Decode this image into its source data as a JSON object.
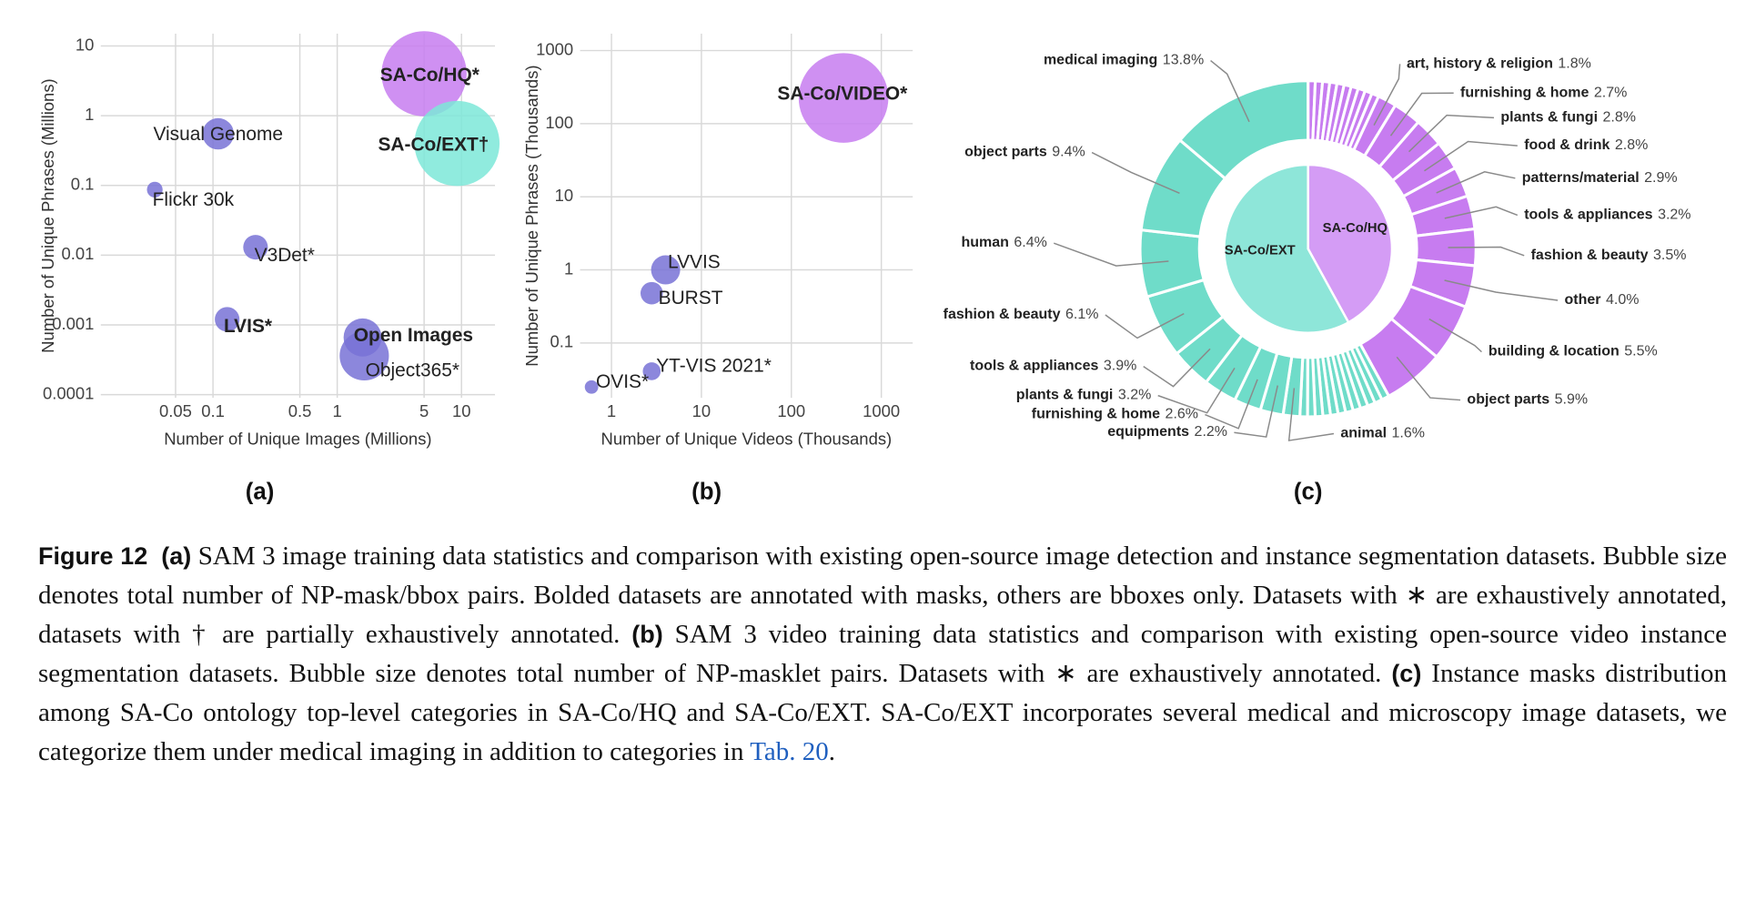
{
  "chart_data": [
    {
      "type": "scatter",
      "label": "(a)",
      "xlabel": "Number of Unique Images (Millions)",
      "ylabel": "Number of Unique Phrases (Millions)",
      "log_x": true,
      "log_y": true,
      "grid": true,
      "xlim": [
        0.0125,
        18.6
      ],
      "ylim": [
        9e-05,
        15
      ],
      "xticks": [
        0.05,
        0.1,
        0.5,
        1,
        5,
        10
      ],
      "yticks": [
        0.0001,
        0.001,
        0.01,
        0.1,
        1,
        10
      ],
      "names": [
        "SA-Co/HQ*",
        "SA-Co/EXT†",
        "Visual Genome",
        "Flickr 30k",
        "V3Det*",
        "LVIS*",
        "Open Images",
        "Object365*"
      ],
      "x": [
        5,
        9.2,
        0.11,
        0.034,
        0.22,
        0.13,
        1.6,
        1.65
      ],
      "values": [
        4,
        0.4,
        0.55,
        0.087,
        0.013,
        0.0012,
        0.00066,
        0.00036
      ],
      "sizes": [
        100,
        100,
        13.6,
        3.4,
        8.4,
        8.4,
        20,
        33.5
      ],
      "colors": [
        "#c77cf0",
        "#7de8d8",
        "#7872d6",
        "#7872d6",
        "#7872d6",
        "#7872d6",
        "#7872d6",
        "#7872d6"
      ],
      "bold": [
        true,
        true,
        false,
        false,
        false,
        true,
        true,
        false
      ]
    },
    {
      "type": "scatter",
      "label": "(b)",
      "xlabel": "Number of Unique Videos (Thousands)",
      "ylabel": "Number of Unique Phrases (Thousands)",
      "log_x": true,
      "log_y": true,
      "grid": true,
      "xlim": [
        0.448,
        2234
      ],
      "ylim": [
        0.0178,
        1700
      ],
      "xticks": [
        1,
        10,
        100,
        1000
      ],
      "yticks": [
        0.1,
        1,
        10,
        100,
        1000
      ],
      "names": [
        "SA-Co/VIDEO*",
        "LVVIS",
        "BURST",
        "YT-VIS 2021*",
        "OVIS*"
      ],
      "x": [
        380,
        4,
        2.8,
        2.8,
        0.6
      ],
      "values": [
        225,
        1.0,
        0.48,
        0.041,
        0.025
      ],
      "sizes": [
        111,
        11.7,
        6.9,
        4.4,
        2.5
      ],
      "colors": [
        "#c77cf0",
        "#7872d6",
        "#7872d6",
        "#7872d6",
        "#7872d6"
      ],
      "bold": [
        true,
        false,
        false,
        false,
        false
      ]
    },
    {
      "type": "pie",
      "label": "(c)",
      "series": [
        {
          "name": "SA-Co/HQ",
          "color": "#c77cf0",
          "inner_color": "#d49cf5",
          "inner_value": 42,
          "categories": [
            null,
            null,
            null,
            null,
            null,
            null,
            null,
            null,
            null,
            null,
            "art, history & religion",
            "furnishing & home",
            "plants & fungi",
            "food & drink",
            "patterns/material",
            "tools & appliances",
            "fashion & beauty",
            "other",
            "building & location",
            "object parts"
          ],
          "values": [
            0.69,
            0.69,
            0.69,
            0.69,
            0.69,
            0.69,
            0.69,
            0.69,
            0.69,
            0.69,
            1.8,
            2.7,
            2.8,
            2.8,
            2.9,
            3.2,
            3.5,
            4.0,
            5.5,
            5.9
          ],
          "value_labels": [
            null,
            null,
            null,
            null,
            null,
            null,
            null,
            null,
            null,
            null,
            "1.8%",
            "2.7%",
            "2.8%",
            "2.8%",
            "2.9%",
            "3.2%",
            "3.5%",
            "4.0%",
            "5.5%",
            "5.9%"
          ]
        },
        {
          "name": "SA-Co/EXT",
          "color": "#6fdcc9",
          "inner_color": "#8ee6d9",
          "inner_value": 58,
          "categories": [
            null,
            null,
            null,
            null,
            null,
            null,
            null,
            null,
            null,
            null,
            null,
            null,
            "animal",
            "equipments",
            "furnishing & home",
            "plants & fungi",
            "tools & appliances",
            "fashion & beauty",
            "human",
            "object parts",
            "medical imaging"
          ],
          "values": [
            0.73,
            0.73,
            0.73,
            0.73,
            0.73,
            0.73,
            0.73,
            0.73,
            0.73,
            0.73,
            0.73,
            0.73,
            1.6,
            2.2,
            2.6,
            3.2,
            3.9,
            6.1,
            6.4,
            9.4,
            13.8
          ],
          "value_labels": [
            null,
            null,
            null,
            null,
            null,
            null,
            null,
            null,
            null,
            null,
            null,
            null,
            "1.6%",
            "2.2%",
            "2.6%",
            "3.2%",
            "3.9%",
            "6.1%",
            "6.4%",
            "9.4%",
            "13.8%"
          ]
        }
      ]
    }
  ],
  "caption": {
    "label": "Figure 12",
    "parts": [
      {
        "tag": "(a)",
        "text": "SAM 3 image training data statistics and comparison with existing open-source image detection and instance segmentation datasets. Bubble size denotes total number of NP-mask/bbox pairs. Bolded datasets are annotated with masks, others are bboxes only. Datasets with ∗ are exhaustively annotated, datasets with † are partially exhaustively annotated."
      },
      {
        "tag": "(b)",
        "text": "SAM 3 video training data statistics and comparison with existing open-source video instance segmentation datasets. Bubble size denotes total number of NP-masklet pairs. Datasets with ∗ are exhaustively annotated."
      },
      {
        "tag": "(c)",
        "text": "Instance masks distribution among SA-Co ontology top-level categories in SA-Co/HQ and SA-Co/EXT. SA-Co/EXT incorporates several medical and microscopy image datasets, we categorize them under medical imaging in addition to categories in"
      }
    ],
    "link": "Tab. 20",
    "end": "."
  }
}
